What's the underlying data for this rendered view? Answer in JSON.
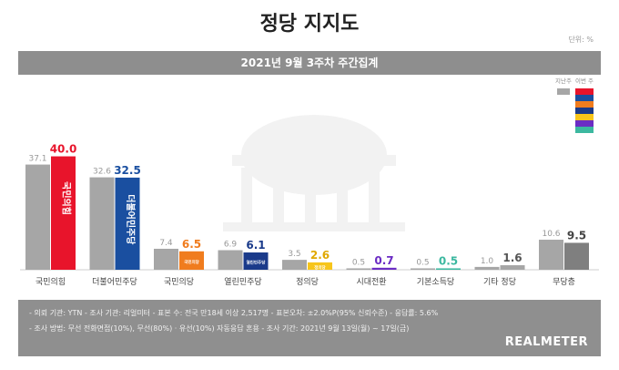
{
  "title": "정당 지지도",
  "unit_label": "단위: %",
  "banner": "2021년 9월 3주차 주간집계",
  "legend": {
    "previous_label": "지난주",
    "current_label": "이번 주",
    "previous_color": "#a6a6a6",
    "current_colors": [
      "#e8142b",
      "#1a4fa0",
      "#f07c1e",
      "#1a3a8a",
      "#f7c51b",
      "#6b2cc4",
      "#3cb8a0"
    ]
  },
  "footer": {
    "line1": "- 의뢰 기관: YTN  - 조사 기관: 리얼미터  - 표본 수: 전국 만18세 이상 2,517명  - 표본오차: ±2.0%P(95% 신뢰수준)  - 응답률: 5.6%",
    "line2": "- 조사 방법: 무선 전화면접(10%), 무선(80%) · 유선(10%) 자동응답 혼용  - 조사 기간: 2021년 9월 13일(월) ~ 17일(금)",
    "brand": "REALMETER"
  },
  "chart_data": {
    "type": "bar",
    "categories": [
      "국민의힘",
      "더불어민주당",
      "국민의당",
      "열린민주당",
      "정의당",
      "시대전환",
      "기본소득당",
      "기타 정당",
      "무당층"
    ],
    "series": [
      {
        "name": "지난주",
        "values": [
          37.1,
          32.6,
          7.4,
          6.9,
          3.5,
          0.5,
          0.5,
          1.0,
          10.6
        ]
      },
      {
        "name": "이번 주",
        "values": [
          40.0,
          32.5,
          6.5,
          6.1,
          2.6,
          0.7,
          0.5,
          1.6,
          9.5
        ]
      }
    ],
    "colors_current": [
      "#e8142b",
      "#1a4fa0",
      "#f07c1e",
      "#1a3a8a",
      "#f7c51b",
      "#6b2cc4",
      "#3cb8a0",
      "#a6a6a6",
      "#7f7f7f"
    ],
    "label_colors_current": [
      "#e8142b",
      "#1a4fa0",
      "#f07c1e",
      "#1a3a8a",
      "#e0a800",
      "#6b2cc4",
      "#3cb8a0",
      "#555555",
      "#444444"
    ],
    "in_bar_labels": [
      "국민의힘",
      "더불어민주당",
      "국민의당",
      "열린민주당",
      "정의당",
      "",
      "",
      "",
      ""
    ],
    "xlabel": "",
    "ylabel": "",
    "ylim": [
      0,
      45
    ],
    "grid": false
  }
}
